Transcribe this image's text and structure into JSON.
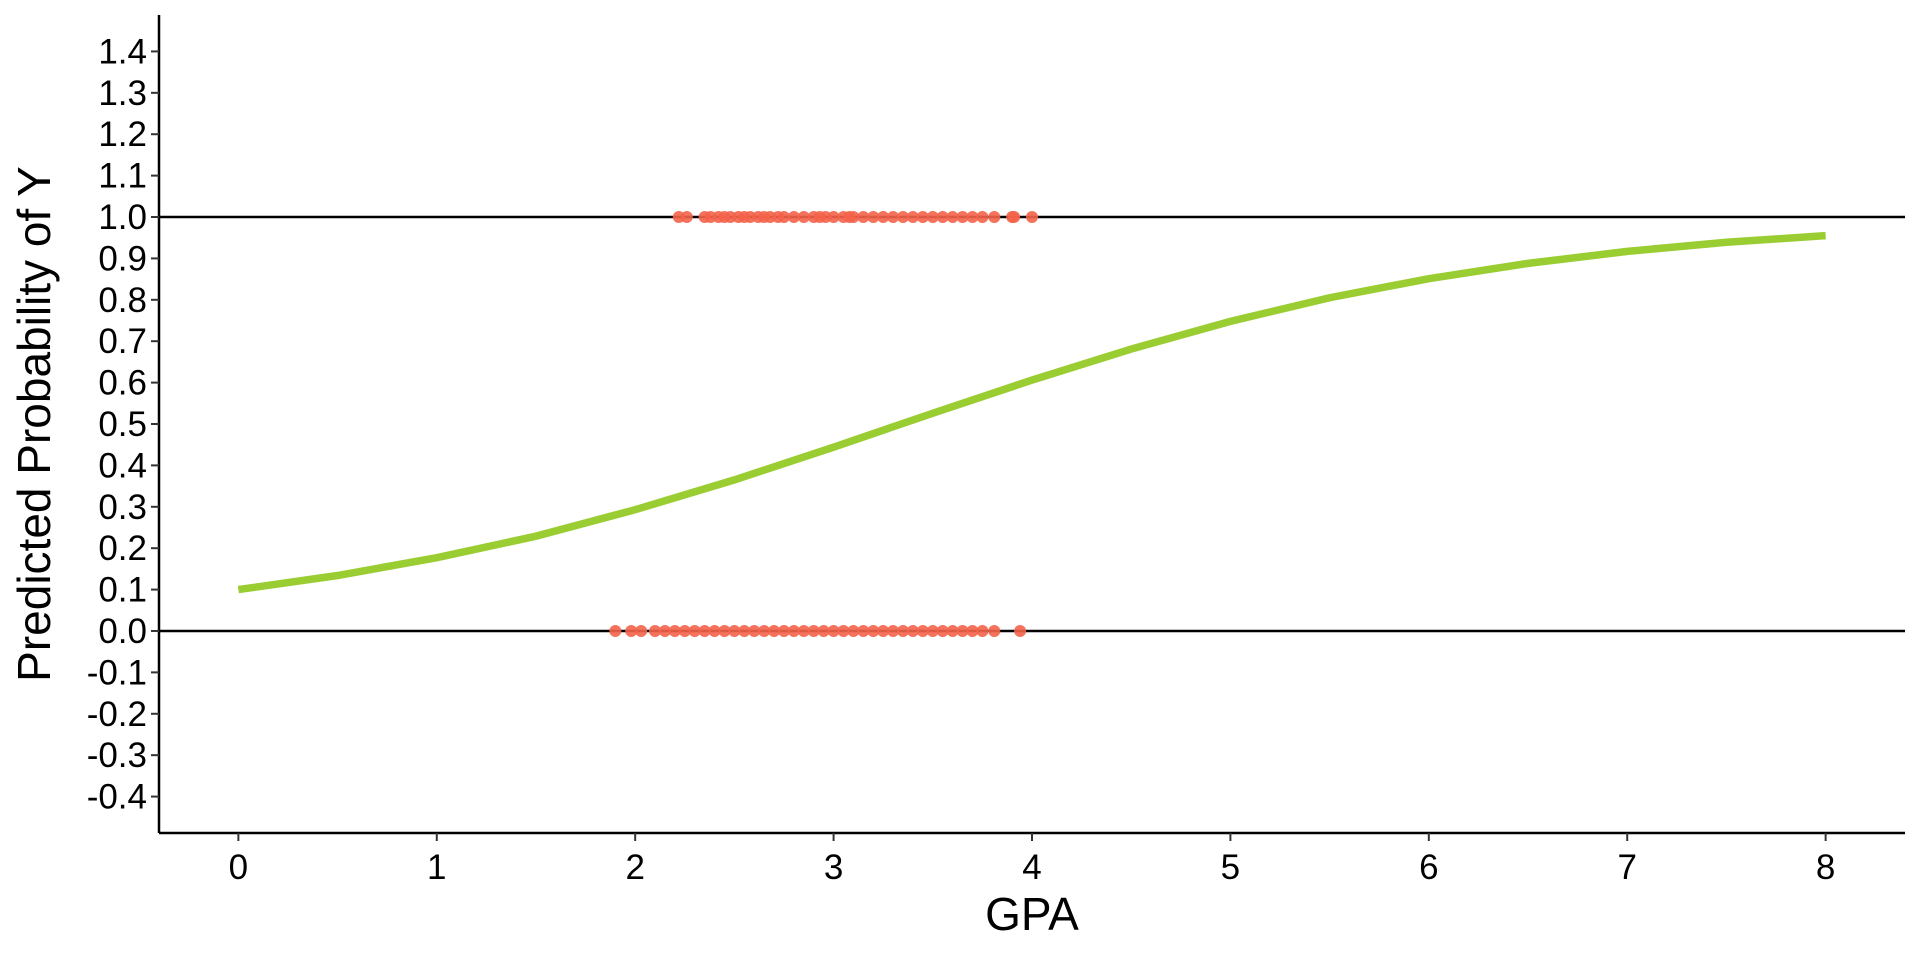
{
  "chart_data": {
    "type": "line",
    "x_label": "GPA",
    "y_label": "Predicted Probability of Y",
    "xlim": [
      -0.4,
      8.4
    ],
    "ylim": [
      -0.488,
      1.488
    ],
    "xticks": [
      0,
      1,
      2,
      3,
      4,
      5,
      6,
      7,
      8
    ],
    "yticks": [
      -0.4,
      -0.3,
      -0.2,
      -0.1,
      {
        "value": 0,
        "label": "0.0"
      },
      0.1,
      0.2,
      0.3,
      0.4,
      0.5,
      0.6,
      0.7,
      0.8,
      0.9,
      {
        "value": 1,
        "label": "1.0"
      },
      1.1,
      1.2,
      1.3,
      1.4
    ],
    "hlines": [
      0,
      1
    ],
    "series": [
      {
        "type": "line",
        "color": "#9acd32",
        "x": [
          0,
          0.5,
          1,
          1.5,
          2,
          2.5,
          3,
          3.5,
          4,
          4.5,
          5,
          5.5,
          6,
          6.5,
          7,
          7.5,
          8
        ],
        "values": [
          0.1,
          0.134,
          0.177,
          0.229,
          0.293,
          0.365,
          0.444,
          0.526,
          0.606,
          0.681,
          0.748,
          0.805,
          0.851,
          0.888,
          0.917,
          0.939,
          0.955
        ]
      },
      {
        "type": "scatter",
        "color": "#f4634a",
        "x": [
          2.22,
          2.26,
          2.35,
          2.38,
          2.42,
          2.45,
          2.48,
          2.52,
          2.55,
          2.58,
          2.62,
          2.65,
          2.68,
          2.72,
          2.75,
          2.8,
          2.85,
          2.9,
          2.93,
          2.96,
          3.0,
          3.05,
          3.08,
          3.1,
          3.15,
          3.2,
          3.25,
          3.3,
          3.35,
          3.4,
          3.45,
          3.5,
          3.55,
          3.6,
          3.65,
          3.7,
          3.75,
          3.81,
          3.9,
          3.91,
          4.0,
          1.9,
          1.98,
          2.03,
          2.1,
          2.15,
          2.2,
          2.25,
          2.3,
          2.35,
          2.4,
          2.45,
          2.5,
          2.55,
          2.6,
          2.65,
          2.7,
          2.75,
          2.8,
          2.85,
          2.9,
          2.95,
          3.0,
          3.05,
          3.1,
          3.15,
          3.2,
          3.25,
          3.3,
          3.35,
          3.4,
          3.45,
          3.5,
          3.55,
          3.6,
          3.65,
          3.7,
          3.75,
          3.81,
          3.94
        ],
        "values": [
          1,
          1,
          1,
          1,
          1,
          1,
          1,
          1,
          1,
          1,
          1,
          1,
          1,
          1,
          1,
          1,
          1,
          1,
          1,
          1,
          1,
          1,
          1,
          1,
          1,
          1,
          1,
          1,
          1,
          1,
          1,
          1,
          1,
          1,
          1,
          1,
          1,
          1,
          1,
          1,
          1,
          0,
          0,
          0,
          0,
          0,
          0,
          0,
          0,
          0,
          0,
          0,
          0,
          0,
          0,
          0,
          0,
          0,
          0,
          0,
          0,
          0,
          0,
          0,
          0,
          0,
          0,
          0,
          0,
          0,
          0,
          0,
          0,
          0,
          0,
          0,
          0,
          0,
          0,
          0
        ]
      }
    ]
  }
}
